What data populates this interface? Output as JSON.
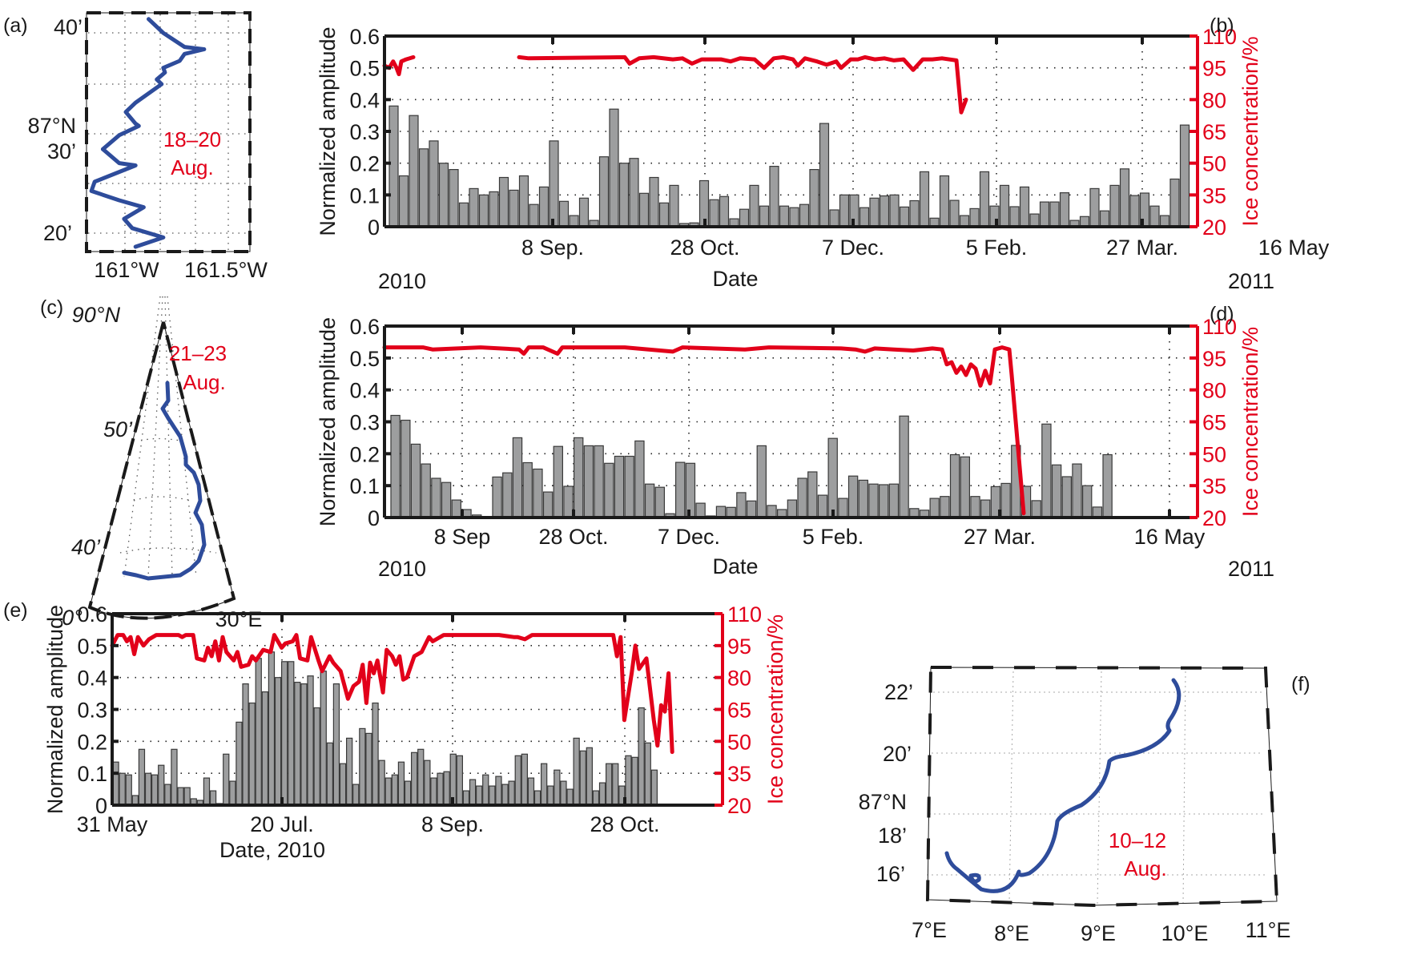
{
  "figure": {
    "colors": {
      "bars": "#9d9e9f",
      "ice_line": "#e2001a",
      "track": "#2e4c9b",
      "axis": "#1a1a1a"
    }
  },
  "chart_data": [
    {
      "id": "a",
      "panel_label": "(a)",
      "type": "line",
      "kind": "map-track",
      "y_ticks": [
        "40’",
        "87°N",
        "30’",
        "20’"
      ],
      "x_ticks": [
        "161°W",
        "161.5°W"
      ],
      "annotation": [
        "18–20",
        "Aug."
      ],
      "track_norm": [
        [
          0.38,
          0.02
        ],
        [
          0.47,
          0.08
        ],
        [
          0.6,
          0.14
        ],
        [
          0.72,
          0.15
        ],
        [
          0.6,
          0.17
        ],
        [
          0.57,
          0.2
        ],
        [
          0.47,
          0.23
        ],
        [
          0.48,
          0.25
        ],
        [
          0.43,
          0.28
        ],
        [
          0.46,
          0.3
        ],
        [
          0.3,
          0.38
        ],
        [
          0.24,
          0.42
        ],
        [
          0.3,
          0.47
        ],
        [
          0.32,
          0.48
        ],
        [
          0.2,
          0.52
        ],
        [
          0.1,
          0.58
        ],
        [
          0.2,
          0.64
        ],
        [
          0.3,
          0.65
        ],
        [
          0.05,
          0.72
        ],
        [
          0.03,
          0.76
        ],
        [
          0.2,
          0.8
        ],
        [
          0.35,
          0.83
        ],
        [
          0.23,
          0.88
        ],
        [
          0.28,
          0.92
        ],
        [
          0.47,
          0.96
        ],
        [
          0.3,
          1.0
        ]
      ]
    },
    {
      "id": "b",
      "panel_label": "(b)",
      "type": "bar",
      "title": "",
      "xlabel": "Date",
      "ylabel": "Normalized amplitude",
      "y2label": "Ice concentration/%",
      "ylim": [
        0,
        0.6
      ],
      "y2lim": [
        20,
        110
      ],
      "y_ticks": [
        "0",
        "0.1",
        "0.2",
        "0.3",
        "0.4",
        "0.5",
        "0.6"
      ],
      "y2_ticks": [
        "20",
        "35",
        "50",
        "65",
        "80",
        "95",
        "110"
      ],
      "x_ticks": [
        "8 Sep.",
        "28 Oct.",
        "7 Dec.",
        "5 Feb.",
        "27 Mar.",
        "16 May"
      ],
      "year_labels": [
        "2010",
        "2011"
      ],
      "grid": true,
      "bar_start_index": 1,
      "values": [
        0.38,
        0.16,
        0.35,
        0.245,
        0.27,
        0.2,
        0.18,
        0.075,
        0.12,
        0.1,
        0.11,
        0.155,
        0.115,
        0.16,
        0.07,
        0.125,
        0.27,
        0.08,
        0.035,
        0.09,
        0.02,
        0.22,
        0.37,
        0.2,
        0.215,
        0.105,
        0.155,
        0.075,
        0.13,
        0.01,
        0.012,
        0.145,
        0.085,
        0.095,
        0.025,
        0.055,
        0.13,
        0.065,
        0.19,
        0.065,
        0.06,
        0.07,
        0.18,
        0.325,
        0.053,
        0.1,
        0.1,
        0.06,
        0.09,
        0.097,
        0.1,
        0.062,
        0.082,
        0.173,
        0.027,
        0.16,
        0.083,
        0.035,
        0.057,
        0.173,
        0.065,
        0.13,
        0.063,
        0.125,
        0.04,
        0.078,
        0.078,
        0.107,
        0.02,
        0.032,
        0.12,
        0.05,
        0.13,
        0.182,
        0.098,
        0.106,
        0.065,
        0.035,
        0.15,
        0.32,
        0.182
      ],
      "ice_segments": [
        [
          [
            0.0,
            96
          ],
          [
            0.01,
            95
          ],
          [
            0.018,
            98
          ],
          [
            0.025,
            95
          ],
          [
            0.03,
            92
          ],
          [
            0.035,
            98
          ],
          [
            0.045,
            99
          ],
          [
            0.06,
            100
          ]
        ],
        [
          [
            0.28,
            100
          ],
          [
            0.3,
            99.5
          ],
          [
            0.5,
            100
          ],
          [
            0.51,
            97
          ],
          [
            0.53,
            99.5
          ],
          [
            0.56,
            100
          ],
          [
            0.6,
            99
          ],
          [
            0.62,
            99.5
          ],
          [
            0.64,
            97
          ],
          [
            0.66,
            99
          ],
          [
            0.7,
            99
          ],
          [
            0.72,
            98
          ],
          [
            0.74,
            99.5
          ],
          [
            0.77,
            99
          ],
          [
            0.79,
            95
          ],
          [
            0.81,
            99.5
          ],
          [
            0.83,
            100
          ],
          [
            0.85,
            99
          ],
          [
            0.86,
            96
          ],
          [
            0.875,
            99.5
          ],
          [
            0.9,
            98
          ],
          [
            0.92,
            96.5
          ],
          [
            0.94,
            98
          ],
          [
            0.95,
            95
          ],
          [
            0.97,
            99
          ],
          [
            0.985,
            99
          ],
          [
            1.0,
            100
          ],
          [
            1.02,
            99
          ],
          [
            1.04,
            99.5
          ],
          [
            1.06,
            98.5
          ],
          [
            1.08,
            99
          ],
          [
            1.1,
            94
          ],
          [
            1.12,
            99
          ],
          [
            1.14,
            99
          ],
          [
            1.16,
            99.5
          ],
          [
            1.19,
            98.5
          ],
          [
            1.2,
            74
          ],
          [
            1.21,
            80
          ]
        ]
      ]
    },
    {
      "id": "c",
      "panel_label": "(c)",
      "type": "line",
      "kind": "map-track",
      "labels": [
        "90°N",
        "50’",
        "40’",
        "0°",
        "30°E"
      ],
      "annotation": [
        "21–23",
        "Aug."
      ]
    },
    {
      "id": "d",
      "panel_label": "(d)",
      "type": "bar",
      "xlabel": "Date",
      "ylabel": "Normalized amplitude",
      "y2label": "Ice concentration/%",
      "ylim": [
        0,
        0.6
      ],
      "y2lim": [
        20,
        110
      ],
      "y_ticks": [
        "0",
        "0.1",
        "0.2",
        "0.3",
        "0.4",
        "0.5",
        "0.6"
      ],
      "y2_ticks": [
        "20",
        "35",
        "50",
        "65",
        "80",
        "95",
        "110"
      ],
      "x_ticks": [
        "8 Sep",
        "28 Oct.",
        "7 Dec.",
        "5 Feb.",
        "27 Mar.",
        "16 May"
      ],
      "year_labels": [
        "2010",
        "2011"
      ],
      "grid": true,
      "bar_start_index": 2,
      "values": [
        0.32,
        0.305,
        0.23,
        0.168,
        0.123,
        0.11,
        0.055,
        0.025,
        0.008,
        0,
        0.127,
        0.14,
        0.25,
        0.172,
        0.152,
        0.08,
        0.223,
        0.098,
        0.25,
        0.225,
        0.225,
        0.17,
        0.192,
        0.192,
        0.24,
        0.105,
        0.095,
        0.012,
        0.173,
        0.17,
        0.045,
        0.005,
        0.035,
        0.032,
        0.078,
        0.052,
        0.225,
        0.038,
        0.025,
        0.055,
        0.123,
        0.143,
        0.07,
        0.248,
        0.06,
        0.13,
        0.117,
        0.105,
        0.103,
        0.105,
        0.318,
        0.028,
        0.023,
        0.06,
        0.066,
        0.197,
        0.19,
        0.066,
        0.055,
        0.097,
        0.107,
        0.226,
        0.098,
        0.053,
        0.293,
        0.165,
        0.128,
        0.168,
        0.1,
        0.033,
        0.197
      ],
      "ice_segments": [
        [
          [
            0.0,
            100
          ],
          [
            0.08,
            100
          ],
          [
            0.1,
            99
          ],
          [
            0.2,
            100
          ],
          [
            0.28,
            99
          ],
          [
            0.29,
            97
          ],
          [
            0.3,
            100
          ],
          [
            0.33,
            100
          ],
          [
            0.36,
            97
          ],
          [
            0.37,
            100
          ],
          [
            0.5,
            100
          ],
          [
            0.6,
            98
          ],
          [
            0.62,
            100
          ],
          [
            0.75,
            99
          ],
          [
            0.8,
            100
          ],
          [
            0.95,
            99.5
          ],
          [
            0.98,
            99
          ],
          [
            1.0,
            98
          ],
          [
            1.02,
            99.5
          ],
          [
            1.06,
            99
          ],
          [
            1.1,
            98.5
          ],
          [
            1.14,
            99.5
          ],
          [
            1.16,
            99
          ],
          [
            1.17,
            92
          ],
          [
            1.18,
            93
          ],
          [
            1.19,
            88
          ],
          [
            1.2,
            91
          ],
          [
            1.21,
            87
          ],
          [
            1.22,
            92
          ],
          [
            1.23,
            90
          ],
          [
            1.24,
            82
          ],
          [
            1.25,
            89
          ],
          [
            1.26,
            83
          ],
          [
            1.27,
            99
          ],
          [
            1.285,
            100
          ],
          [
            1.3,
            99
          ],
          [
            1.305,
            87
          ],
          [
            1.33,
            22
          ]
        ]
      ]
    },
    {
      "id": "e",
      "panel_label": "(e)",
      "type": "bar",
      "xlabel": "Date, 2010",
      "ylabel": "Normalized amplitude",
      "y2label": "Ice concentration/%",
      "ylim": [
        0,
        0.6
      ],
      "y2lim": [
        20,
        110
      ],
      "y_ticks": [
        "0",
        "0.1",
        "0.2",
        "0.3",
        "0.4",
        "0.5",
        "0.6"
      ],
      "y2_ticks": [
        "20",
        "35",
        "50",
        "65",
        "80",
        "95",
        "110"
      ],
      "x_ticks": [
        "31 May",
        "20 Jul.",
        "8 Sep.",
        "28 Oct."
      ],
      "grid": true,
      "values": [
        0.135,
        0.1,
        0.095,
        0.03,
        0.175,
        0.1,
        0.095,
        0.125,
        0.065,
        0.175,
        0.055,
        0.055,
        0.02,
        0.015,
        0.085,
        0.045,
        0.005,
        0.16,
        0.075,
        0.26,
        0.38,
        0.32,
        0.46,
        0.355,
        0.48,
        0.4,
        0.45,
        0.45,
        0.385,
        0.38,
        0.405,
        0.305,
        0.42,
        0.195,
        0.38,
        0.13,
        0.21,
        0.065,
        0.24,
        0.225,
        0.32,
        0.14,
        0.085,
        0.095,
        0.135,
        0.075,
        0.165,
        0.175,
        0.14,
        0.085,
        0.1,
        0.105,
        0.16,
        0.155,
        0.045,
        0.08,
        0.06,
        0.095,
        0.06,
        0.09,
        0.065,
        0.075,
        0.155,
        0.16,
        0.085,
        0.045,
        0.13,
        0.06,
        0.11,
        0.075,
        0.05,
        0.21,
        0.17,
        0.18,
        0.045,
        0.07,
        0.13,
        0.13,
        0.06,
        0.155,
        0.15,
        0.305,
        0.195,
        0.11
      ],
      "ice_segments": [
        [
          [
            0.0,
            95
          ],
          [
            0.015,
            100
          ],
          [
            0.03,
            100
          ],
          [
            0.04,
            97
          ],
          [
            0.05,
            99
          ],
          [
            0.06,
            91
          ],
          [
            0.07,
            99
          ],
          [
            0.085,
            95
          ],
          [
            0.1,
            98
          ],
          [
            0.12,
            100
          ],
          [
            0.18,
            100
          ],
          [
            0.19,
            99
          ],
          [
            0.2,
            100
          ],
          [
            0.22,
            100
          ],
          [
            0.23,
            89
          ],
          [
            0.25,
            88
          ],
          [
            0.26,
            94
          ],
          [
            0.27,
            90
          ],
          [
            0.28,
            97
          ],
          [
            0.29,
            88
          ],
          [
            0.3,
            99
          ],
          [
            0.31,
            92
          ],
          [
            0.33,
            88
          ],
          [
            0.34,
            92
          ],
          [
            0.35,
            85
          ],
          [
            0.37,
            86
          ],
          [
            0.38,
            90
          ],
          [
            0.39,
            88
          ],
          [
            0.41,
            93
          ],
          [
            0.43,
            92
          ],
          [
            0.44,
            100
          ],
          [
            0.46,
            94
          ],
          [
            0.47,
            96
          ],
          [
            0.49,
            97
          ],
          [
            0.5,
            100
          ],
          [
            0.51,
            89
          ],
          [
            0.53,
            88
          ],
          [
            0.54,
            99
          ],
          [
            0.56,
            88
          ],
          [
            0.57,
            83
          ],
          [
            0.59,
            90
          ],
          [
            0.6,
            87
          ],
          [
            0.62,
            83
          ],
          [
            0.64,
            70
          ],
          [
            0.655,
            76
          ],
          [
            0.67,
            78
          ],
          [
            0.68,
            86
          ],
          [
            0.69,
            68
          ],
          [
            0.7,
            87
          ],
          [
            0.71,
            82
          ],
          [
            0.72,
            88
          ],
          [
            0.735,
            73
          ],
          [
            0.745,
            93
          ],
          [
            0.76,
            90
          ],
          [
            0.77,
            86
          ],
          [
            0.78,
            90
          ],
          [
            0.79,
            79
          ],
          [
            0.8,
            80
          ],
          [
            0.82,
            90
          ],
          [
            0.84,
            92
          ],
          [
            0.86,
            99
          ],
          [
            0.87,
            97
          ],
          [
            0.9,
            100
          ],
          [
            1.05,
            100
          ],
          [
            1.09,
            99
          ],
          [
            1.1,
            99
          ],
          [
            1.12,
            98
          ],
          [
            1.14,
            100
          ],
          [
            1.2,
            100
          ],
          [
            1.36,
            100
          ],
          [
            1.37,
            90
          ],
          [
            1.38,
            99
          ],
          [
            1.39,
            60
          ],
          [
            1.41,
            82
          ],
          [
            1.42,
            95
          ],
          [
            1.43,
            84
          ],
          [
            1.45,
            89
          ],
          [
            1.47,
            60
          ],
          [
            1.48,
            48
          ],
          [
            1.49,
            67
          ],
          [
            1.5,
            64
          ],
          [
            1.51,
            82
          ],
          [
            1.52,
            45
          ]
        ]
      ]
    },
    {
      "id": "f",
      "panel_label": "(f)",
      "type": "line",
      "kind": "map-track",
      "y_ticks": [
        "22’",
        "20’",
        "87°N",
        "18’",
        "16’"
      ],
      "x_ticks": [
        "7°E",
        "8°E",
        "9°E",
        "10°E",
        "11°E"
      ],
      "annotation": [
        "10–12",
        "Aug."
      ]
    }
  ]
}
